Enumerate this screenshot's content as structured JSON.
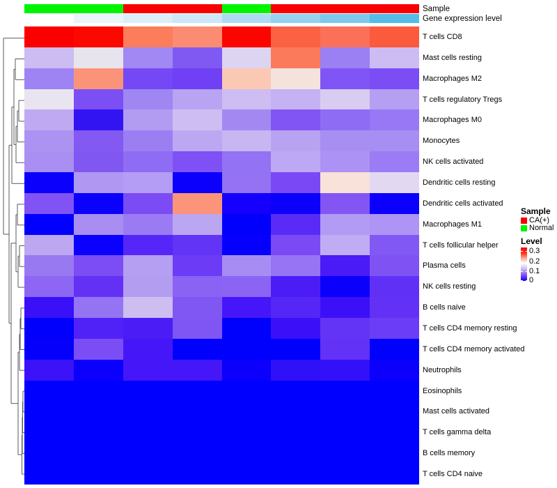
{
  "figure": {
    "type": "clustered-heatmap",
    "description": "Immune cell fraction heatmap with row dendrogram, sample annotation and gene expression level annotation"
  },
  "annotations": {
    "sample": {
      "label": "Sample",
      "per_column": [
        "Normal",
        "Normal",
        "CA(+)",
        "CA(+)",
        "Normal",
        "CA(+)",
        "CA(+)",
        "CA(+)"
      ],
      "group_colors": {
        "CA(+)": "#F90000",
        "Normal": "#00F400"
      }
    },
    "gene_expression": {
      "label": "Gene expression level",
      "colors": [
        "#FFFFFF",
        "#E9F4FB",
        "#DDEEF9",
        "#CEE7F7",
        "#AEDBF3",
        "#96D1EF",
        "#7EC8EC",
        "#55BBE7"
      ]
    }
  },
  "legend": {
    "sample_title": "Sample",
    "sample_entries": [
      {
        "label": "CA(+)",
        "color": "#F90000"
      },
      {
        "label": "Normal",
        "color": "#00F400"
      }
    ],
    "level_title": "Level",
    "level_ticks": [
      "0.3",
      "0.2",
      "0.1",
      "0"
    ],
    "level_tick_offsets": [
      5,
      20,
      34,
      47
    ],
    "level_gradient": [
      "#FB0000",
      "#FB3A20",
      "#FCAD98",
      "#FFFFFF",
      "#D8CCF2",
      "#A585F3",
      "#6A38F6",
      "#0A00FB"
    ],
    "level_gradient_stops": [
      0,
      18,
      33,
      47,
      60,
      74,
      87,
      100
    ]
  },
  "chart_data": {
    "type": "heatmap",
    "value_range": [
      0,
      0.3
    ],
    "n_columns": 8,
    "column_sample_groups": [
      "Normal",
      "Normal",
      "CA(+)",
      "CA(+)",
      "Normal",
      "CA(+)",
      "CA(+)",
      "CA(+)"
    ],
    "rows": [
      "T cells CD8",
      "Mast cells resting",
      "Macrophages M2",
      "T cells regulatory  Tregs",
      "Macrophages M0",
      "Monocytes",
      "NK cells activated",
      "Dendritic cells resting",
      "Dendritic cells activated",
      "Macrophages M1",
      "T cells follicular helper",
      "Plasma cells",
      "NK cells resting",
      "B cells naive",
      "T cells CD4 memory resting",
      "T cells CD4 memory activated",
      "Neutrophils",
      "Eosinophils",
      "Mast cells activated",
      "T cells gamma delta",
      "B cells memory",
      "T cells CD4 naive"
    ],
    "values": [
      [
        0.3,
        0.3,
        0.22,
        0.21,
        0.3,
        0.24,
        0.23,
        0.25
      ],
      [
        0.11,
        0.14,
        0.09,
        0.07,
        0.12,
        0.22,
        0.08,
        0.11
      ],
      [
        0.09,
        0.21,
        0.05,
        0.05,
        0.19,
        0.16,
        0.06,
        0.06
      ],
      [
        0.14,
        0.06,
        0.09,
        0.1,
        0.11,
        0.11,
        0.12,
        0.1
      ],
      [
        0.1,
        0.02,
        0.1,
        0.11,
        0.09,
        0.06,
        0.07,
        0.08
      ],
      [
        0.09,
        0.07,
        0.08,
        0.1,
        0.11,
        0.1,
        0.09,
        0.09
      ],
      [
        0.09,
        0.07,
        0.07,
        0.06,
        0.08,
        0.1,
        0.09,
        0.08
      ],
      [
        0.0,
        0.09,
        0.1,
        0.0,
        0.08,
        0.06,
        0.16,
        0.13
      ],
      [
        0.07,
        0.0,
        0.06,
        0.21,
        0.01,
        0.0,
        0.07,
        0.0
      ],
      [
        0.0,
        0.09,
        0.08,
        0.1,
        0.0,
        0.04,
        0.1,
        0.09
      ],
      [
        0.1,
        0.0,
        0.04,
        0.05,
        0.0,
        0.06,
        0.11,
        0.07
      ],
      [
        0.08,
        0.06,
        0.1,
        0.05,
        0.09,
        0.08,
        0.03,
        0.06
      ],
      [
        0.07,
        0.05,
        0.1,
        0.07,
        0.07,
        0.03,
        0.0,
        0.05
      ],
      [
        0.03,
        0.08,
        0.11,
        0.07,
        0.03,
        0.04,
        0.03,
        0.05
      ],
      [
        0.0,
        0.04,
        0.03,
        0.06,
        0.0,
        0.03,
        0.05,
        0.05
      ],
      [
        0.0,
        0.06,
        0.03,
        0.0,
        0.0,
        0.0,
        0.05,
        0.0
      ],
      [
        0.03,
        0.0,
        0.03,
        0.03,
        0.0,
        0.02,
        0.02,
        0.0
      ],
      [
        0.0,
        0.0,
        0.0,
        0.0,
        0.0,
        0.0,
        0.0,
        0.0
      ],
      [
        0.0,
        0.0,
        0.0,
        0.0,
        0.0,
        0.0,
        0.0,
        0.0
      ],
      [
        0.0,
        0.0,
        0.0,
        0.0,
        0.0,
        0.0,
        0.0,
        0.0
      ],
      [
        0.0,
        0.0,
        0.0,
        0.0,
        0.0,
        0.0,
        0.0,
        0.0
      ],
      [
        0.0,
        0.0,
        0.0,
        0.0,
        0.0,
        0.0,
        0.0,
        0.0
      ]
    ],
    "colors": [
      [
        "#FB0000",
        "#FB0800",
        "#FB7D5B",
        "#FB8C72",
        "#FB0500",
        "#FB6244",
        "#FB7058",
        "#FB5B3C"
      ],
      [
        "#CCBCF2",
        "#E8E4EE",
        "#A288F2",
        "#8059F3",
        "#DCD4F0",
        "#FB7A5C",
        "#9A80F3",
        "#CCBCF3"
      ],
      [
        "#9D83F3",
        "#FB9378",
        "#7548F5",
        "#7040F5",
        "#FBC8B4",
        "#F4E2DC",
        "#8055F5",
        "#7A4DF5"
      ],
      [
        "#E9E5F0",
        "#7C4FF4",
        "#9F86F3",
        "#B8A4F2",
        "#CDBDF2",
        "#C4B2F3",
        "#D8CCF2",
        "#B49FF3"
      ],
      [
        "#BFA9F2",
        "#3214F3",
        "#B29CF2",
        "#CDBDF2",
        "#A488F2",
        "#8055F4",
        "#8E6CF4",
        "#9878F4"
      ],
      [
        "#AC93F2",
        "#8359F2",
        "#9B7EF2",
        "#BCA8F2",
        "#C8B6F2",
        "#B8A2F2",
        "#A78EF2",
        "#A78EF2"
      ],
      [
        "#A98FF2",
        "#8157F2",
        "#8F6CF4",
        "#7E50F5",
        "#9372F4",
        "#BCA8F4",
        "#AC92F4",
        "#9C7CF4"
      ],
      [
        "#0A00FB",
        "#B098F2",
        "#B49DF4",
        "#0A00FB",
        "#9571F4",
        "#7A49F5",
        "#F8E2DA",
        "#E2D8F2"
      ],
      [
        "#8153F4",
        "#0A00FC",
        "#7B4BF5",
        "#FB9478",
        "#1400FC",
        "#0A00FC",
        "#8356F4",
        "#0A00FC"
      ],
      [
        "#0000FC",
        "#A98EF2",
        "#9B7BF4",
        "#BBA6F2",
        "#0000FC",
        "#5A2BF7",
        "#B29BF4",
        "#AE94F4"
      ],
      [
        "#BCA7F0",
        "#0A00FC",
        "#5526F7",
        "#6134F6",
        "#0500FD",
        "#7B4AF5",
        "#C0ACF2",
        "#8158F4"
      ],
      [
        "#9879F2",
        "#7C4DF4",
        "#B49FF2",
        "#6C3BF6",
        "#A78CF4",
        "#9674F4",
        "#4A1AF7",
        "#7F52F4"
      ],
      [
        "#8E66F4",
        "#6331F6",
        "#B29DF0",
        "#8A62F4",
        "#8C64F4",
        "#4C1CF7",
        "#0A00FC",
        "#6130F6"
      ],
      [
        "#3A10F8",
        "#9474F2",
        "#CDBDF0",
        "#8157F4",
        "#4517F8",
        "#5526F6",
        "#3B10F9",
        "#6330F6"
      ],
      [
        "#0000FC",
        "#5122F7",
        "#4C1CF7",
        "#7F55F4",
        "#0000FD",
        "#3B10F9",
        "#6334F6",
        "#6C3DF6"
      ],
      [
        "#0500FC",
        "#7B4DF4",
        "#4517F8",
        "#0000FD",
        "#0000FD",
        "#0000FD",
        "#6232F6",
        "#0000FD"
      ],
      [
        "#3C12F8",
        "#0A00FC",
        "#4416F8",
        "#4416F8",
        "#0A00FC",
        "#3010F9",
        "#3210F9",
        "#0A00FC"
      ],
      [
        "#0000FE",
        "#0000FE",
        "#0000FE",
        "#0000FE",
        "#0000FE",
        "#0000FE",
        "#0000FE",
        "#0000FE"
      ],
      [
        "#0000FE",
        "#0000FE",
        "#0000FE",
        "#0000FE",
        "#0000FE",
        "#0000FE",
        "#0000FE",
        "#0000FE"
      ],
      [
        "#0000FE",
        "#0000FE",
        "#0000FE",
        "#0000FE",
        "#0000FE",
        "#0000FE",
        "#0000FE",
        "#0000FE"
      ],
      [
        "#0000FE",
        "#0000FE",
        "#0000FE",
        "#0000FE",
        "#0000FE",
        "#0000FE",
        "#0000FE",
        "#0000FE"
      ],
      [
        "#0000FE",
        "#0000FE",
        "#0000FE",
        "#0000FE",
        "#0000FE",
        "#0000FE",
        "#0000FE",
        "#0000FE"
      ]
    ],
    "row_dendrogram": {
      "segments": [
        [
          5,
          54.7,
          35,
          54.7
        ],
        [
          5,
          54.7,
          5,
          336
        ],
        [
          5,
          336,
          13,
          336
        ],
        [
          13,
          208.3,
          13,
          463.8
        ],
        [
          13,
          208.3,
          17,
          208.3
        ],
        [
          13,
          463.8,
          16,
          463.8
        ],
        [
          17,
          153.4,
          17,
          263.2
        ],
        [
          17,
          153.4,
          20,
          153.4
        ],
        [
          17,
          263.2,
          35,
          263.2
        ],
        [
          20,
          99.4,
          20,
          207.4
        ],
        [
          20,
          99.4,
          22,
          99.4
        ],
        [
          20,
          207.4,
          23,
          207.4
        ],
        [
          22,
          84.5,
          22,
          114.3
        ],
        [
          22,
          84.5,
          35,
          84.5
        ],
        [
          22,
          114.3,
          35,
          114.3
        ],
        [
          23,
          181.3,
          23,
          233.4
        ],
        [
          23,
          181.3,
          25,
          181.3
        ],
        [
          23,
          233.4,
          35,
          233.4
        ],
        [
          25,
          159,
          25,
          203.6
        ],
        [
          25,
          159,
          27,
          159
        ],
        [
          25,
          203.6,
          35,
          203.6
        ],
        [
          27,
          144.1,
          27,
          173.9
        ],
        [
          27,
          144.1,
          35,
          144.1
        ],
        [
          27,
          173.9,
          35,
          173.9
        ],
        [
          16,
          348.8,
          16,
          578.7
        ],
        [
          16,
          348.8,
          23,
          348.8
        ],
        [
          16,
          578.7,
          26,
          578.7
        ],
        [
          23,
          307.9,
          23,
          389.8
        ],
        [
          23,
          307.9,
          25,
          307.9
        ],
        [
          23,
          389.8,
          26,
          389.8
        ],
        [
          25,
          293,
          25,
          322.8
        ],
        [
          25,
          293,
          35,
          293
        ],
        [
          25,
          322.8,
          35,
          322.8
        ],
        [
          26,
          367.4,
          26,
          412.1
        ],
        [
          26,
          367.4,
          28,
          367.4
        ],
        [
          26,
          412.1,
          35,
          412.1
        ],
        [
          28,
          352.5,
          28,
          382.3
        ],
        [
          28,
          352.5,
          35,
          352.5
        ],
        [
          28,
          382.3,
          35,
          382.3
        ],
        [
          26,
          505.2,
          26,
          652.2
        ],
        [
          26,
          505.2,
          28,
          505.2
        ],
        [
          26,
          652.2,
          31.5,
          652.2
        ],
        [
          28,
          479.1,
          28,
          531.2
        ],
        [
          28,
          479.1,
          29,
          479.1
        ],
        [
          28,
          531.2,
          35,
          531.2
        ],
        [
          29,
          456.8,
          29,
          501.4
        ],
        [
          29,
          456.8,
          30,
          456.8
        ],
        [
          29,
          501.4,
          35,
          501.4
        ],
        [
          30,
          441.9,
          30,
          471.7
        ],
        [
          30,
          441.9,
          35,
          441.9
        ],
        [
          30,
          471.7,
          35,
          471.7
        ],
        [
          31.5,
          624.3,
          31.5,
          680.1
        ],
        [
          31.5,
          624.3,
          32,
          624.3
        ],
        [
          31.5,
          680.1,
          35,
          680.1
        ],
        [
          32,
          598.3,
          32,
          650.3
        ],
        [
          32,
          598.3,
          32.5,
          598.3
        ],
        [
          32,
          650.3,
          35,
          650.3
        ],
        [
          32.5,
          575.9,
          32.5,
          620.6
        ],
        [
          32.5,
          575.9,
          33,
          575.9
        ],
        [
          32.5,
          620.6,
          35,
          620.6
        ],
        [
          33,
          561,
          33,
          590.8
        ],
        [
          33,
          561,
          35,
          561
        ],
        [
          33,
          590.8,
          35,
          590.8
        ]
      ]
    }
  }
}
